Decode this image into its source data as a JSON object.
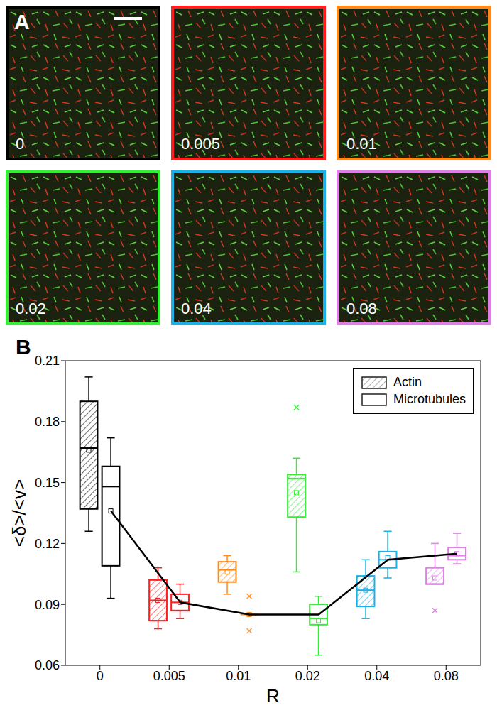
{
  "panel_a": {
    "label": "A",
    "images": [
      {
        "label": "0",
        "color": "#000000"
      },
      {
        "label": "0.005",
        "color": "#ff1f1f"
      },
      {
        "label": "0.01",
        "color": "#ff8a1a"
      },
      {
        "label": "0.02",
        "color": "#33ee33"
      },
      {
        "label": "0.04",
        "color": "#1ab0e8"
      },
      {
        "label": "0.08",
        "color": "#e07ee8"
      }
    ]
  },
  "chart_data": {
    "type": "box",
    "label": "B",
    "xlabel": "R",
    "ylabel": "<δ>/<v>",
    "categories": [
      "0",
      "0.005",
      "0.01",
      "0.02",
      "0.04",
      "0.08"
    ],
    "colors": [
      "#000000",
      "#ff1f1f",
      "#ff8a1a",
      "#33ee33",
      "#1ab0e8",
      "#e07ee8"
    ],
    "ylim": [
      0.06,
      0.21
    ],
    "yticks": [
      0.06,
      0.09,
      0.12,
      0.15,
      0.18,
      0.21
    ],
    "legend": "upper right",
    "series": [
      {
        "name": "Actin",
        "marker": "hatched",
        "values": [
          {
            "whisker_low": 0.126,
            "q1": 0.137,
            "median": 0.167,
            "q3": 0.19,
            "whisker_high": 0.202,
            "mean": 0.166,
            "outliers": []
          },
          {
            "whisker_low": 0.078,
            "q1": 0.082,
            "median": 0.092,
            "q3": 0.102,
            "whisker_high": 0.108,
            "mean": 0.092,
            "outliers": []
          },
          {
            "whisker_low": 0.095,
            "q1": 0.101,
            "median": 0.107,
            "q3": 0.111,
            "whisker_high": 0.114,
            "mean": 0.106,
            "outliers": []
          },
          {
            "whisker_low": 0.106,
            "q1": 0.133,
            "median": 0.152,
            "q3": 0.154,
            "whisker_high": 0.162,
            "mean": 0.145,
            "outliers": [
              0.187
            ]
          },
          {
            "whisker_low": 0.083,
            "q1": 0.089,
            "median": 0.097,
            "q3": 0.104,
            "whisker_high": 0.112,
            "mean": 0.097,
            "outliers": []
          },
          {
            "whisker_low": 0.1,
            "q1": 0.1,
            "median": 0.1,
            "q3": 0.108,
            "whisker_high": 0.12,
            "mean": 0.103,
            "outliers": [
              0.087
            ]
          }
        ]
      },
      {
        "name": "Microtubules",
        "marker": "open",
        "values": [
          {
            "whisker_low": 0.093,
            "q1": 0.109,
            "median": 0.148,
            "q3": 0.158,
            "whisker_high": 0.172,
            "mean": 0.136,
            "outliers": []
          },
          {
            "whisker_low": 0.083,
            "q1": 0.087,
            "median": 0.091,
            "q3": 0.095,
            "whisker_high": 0.1,
            "mean": 0.091,
            "outliers": []
          },
          {
            "whisker_low": 0.085,
            "q1": 0.085,
            "median": 0.085,
            "q3": 0.085,
            "whisker_high": 0.085,
            "mean": 0.085,
            "outliers": [
              0.094,
              0.077
            ]
          },
          {
            "whisker_low": 0.065,
            "q1": 0.08,
            "median": 0.083,
            "q3": 0.09,
            "whisker_high": 0.094,
            "mean": 0.082,
            "outliers": []
          },
          {
            "whisker_low": 0.103,
            "q1": 0.108,
            "median": 0.112,
            "q3": 0.116,
            "whisker_high": 0.126,
            "mean": 0.113,
            "outliers": []
          },
          {
            "whisker_low": 0.11,
            "q1": 0.112,
            "median": 0.114,
            "q3": 0.118,
            "whisker_high": 0.125,
            "mean": 0.115,
            "outliers": []
          }
        ]
      }
    ],
    "line": {
      "color": "#000000",
      "values": [
        0.136,
        0.091,
        0.085,
        0.085,
        0.112,
        0.115
      ]
    }
  }
}
